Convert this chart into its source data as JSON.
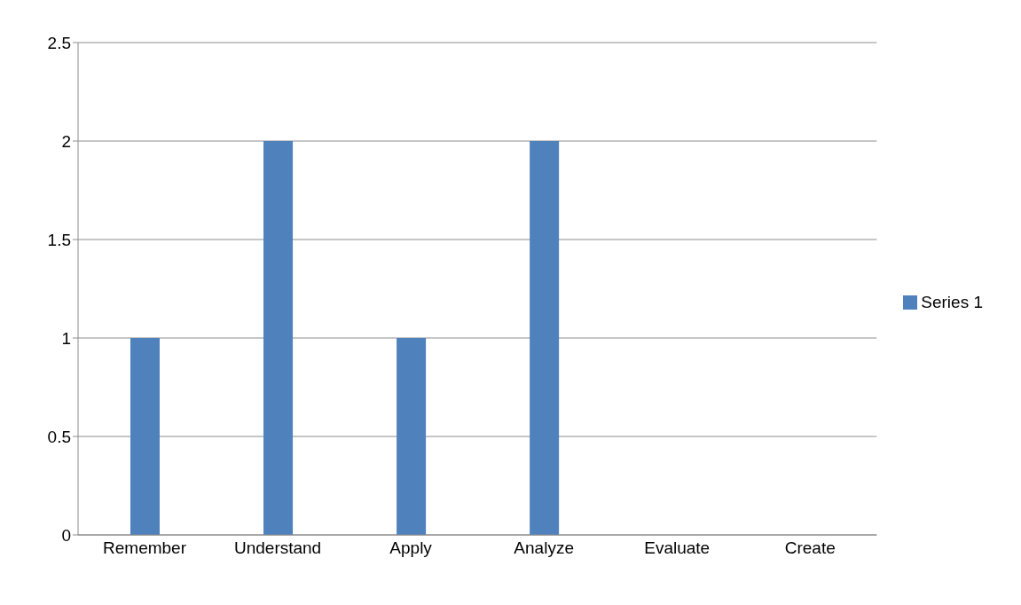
{
  "chart_data": {
    "type": "bar",
    "categories": [
      "Remember",
      "Understand",
      "Apply",
      "Analyze",
      "Evaluate",
      "Create"
    ],
    "series": [
      {
        "name": "Series 1",
        "color": "#4f81bd",
        "values": [
          1,
          2,
          1,
          2,
          0,
          0
        ]
      }
    ],
    "ylim": [
      0,
      2.5
    ],
    "yticks": [
      0,
      0.5,
      1,
      1.5,
      2,
      2.5
    ],
    "grid": "y",
    "legend": "right"
  }
}
